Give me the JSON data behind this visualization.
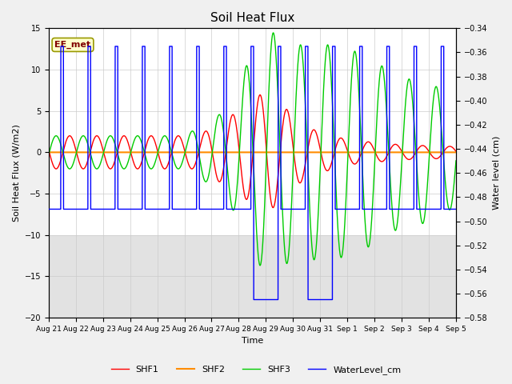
{
  "title": "Soil Heat Flux",
  "xlabel": "Time",
  "ylabel_left": "Soil Heat Flux (W/m2)",
  "ylabel_right": "Water level (cm)",
  "ylim_left": [
    -20,
    15
  ],
  "ylim_right": [
    -0.58,
    -0.34
  ],
  "yticks_left": [
    -20,
    -15,
    -10,
    -5,
    0,
    5,
    10,
    15
  ],
  "yticks_right": [
    -0.58,
    -0.56,
    -0.54,
    -0.52,
    -0.5,
    -0.48,
    -0.46,
    -0.44,
    -0.42,
    -0.4,
    -0.38,
    -0.36,
    -0.34
  ],
  "annotation_text": "EE_met",
  "annotation_color": "#800000",
  "annotation_bg": "#ffffcc",
  "annotation_border": "#999900",
  "shf1_color": "#ff0000",
  "shf2_color": "#ff8c00",
  "shf3_color": "#00cc00",
  "water_color": "#0000ff",
  "bg_color": "#f0f0f0",
  "plot_bg": "#ffffff",
  "grid_color": "#cccccc",
  "legend_labels": [
    "SHF1",
    "SHF2",
    "SHF3",
    "WaterLevel_cm"
  ],
  "xtick_labels": [
    "Aug 21",
    "Aug 22",
    "Aug 23",
    "Aug 24",
    "Aug 25",
    "Aug 26",
    "Aug 27",
    "Aug 28",
    "Aug 29",
    "Aug 30",
    "Aug 31",
    "Sep 1",
    "Sep 2",
    "Sep 3",
    "Sep 4",
    "Sep 5"
  ]
}
